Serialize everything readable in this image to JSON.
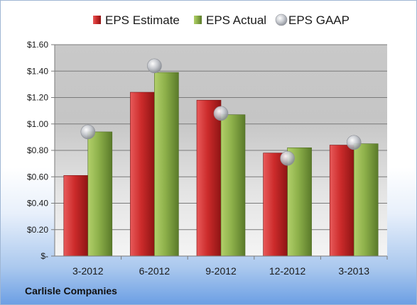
{
  "company": "Carlisle Companies",
  "chart_data": {
    "type": "bar",
    "categories": [
      "3-2012",
      "6-2012",
      "9-2012",
      "12-2012",
      "3-2013"
    ],
    "series": [
      {
        "name": "EPS Estimate",
        "values": [
          0.61,
          1.24,
          1.18,
          0.78,
          0.84
        ],
        "color": "#cc2b2b",
        "kind": "bar"
      },
      {
        "name": "EPS Actual",
        "values": [
          0.94,
          1.39,
          1.07,
          0.82,
          0.85
        ],
        "color": "#8db04a",
        "kind": "bar"
      },
      {
        "name": "EPS GAAP",
        "values": [
          0.94,
          1.44,
          1.08,
          0.74,
          0.86
        ],
        "color": "#b8bcc4",
        "kind": "marker"
      }
    ],
    "ylim": [
      0,
      1.6
    ],
    "yticks": [
      0,
      0.2,
      0.4,
      0.6,
      0.8,
      1.0,
      1.2,
      1.4,
      1.6
    ],
    "ytick_labels": [
      "$-",
      "$0.20",
      "$0.40",
      "$0.60",
      "$0.80",
      "$1.00",
      "$1.20",
      "$1.40",
      "$1.60"
    ],
    "grid": true,
    "legend_position": "top"
  }
}
